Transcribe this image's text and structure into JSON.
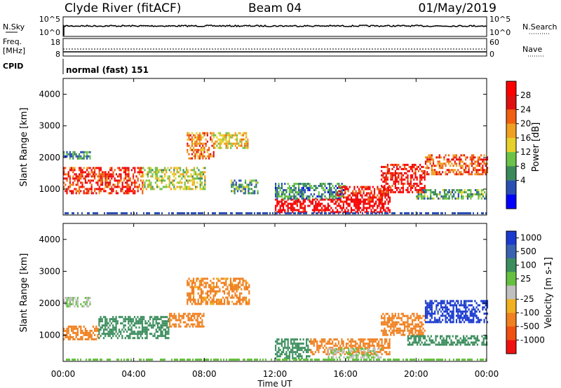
{
  "header": {
    "station": "Clyde River (fitACF)",
    "beam": "Beam 04",
    "date": "01/May/2019"
  },
  "top_panels": {
    "nsky": {
      "label": "N.Sky",
      "tick_hi": "10^5",
      "tick_lo": "10^0"
    },
    "nsearch": {
      "label": "N.Search",
      "tick_hi": "10^5",
      "tick_lo": "10^0"
    },
    "freq": {
      "label_a": "Freq.",
      "label_b": "[MHz]",
      "tick_hi": "18",
      "tick_lo": "8"
    },
    "nave": {
      "label": "Nave",
      "tick_hi": "60",
      "tick_lo": "0"
    },
    "cpid": {
      "label": "CPID",
      "value": "normal (fast) 151"
    }
  },
  "colors": {
    "power_scale": [
      "#0000ff",
      "#2b4fb5",
      "#3b8a5a",
      "#6cc34a",
      "#e6d02a",
      "#f0a020",
      "#f06010",
      "#e01010",
      "#ff0000"
    ],
    "velocity_scale": [
      "#1a3ad0",
      "#3a62b0",
      "#3c8e5e",
      "#66c040",
      "#c0c0c0",
      "#f0b020",
      "#f08020",
      "#f05010",
      "#f01010"
    ]
  },
  "chart_data": [
    {
      "type": "heatmap",
      "name": "power",
      "ylabel": "Slant Range [km]",
      "xlabel": "",
      "colorbar_label": "Power [dB]",
      "colorbar_ticks": [
        "28",
        "24",
        "20",
        "16",
        "12",
        "8",
        "4"
      ],
      "x_ticks": [
        "00:00",
        "04:00",
        "08:00",
        "12:00",
        "16:00",
        "20:00",
        "00:00"
      ],
      "y_ticks": [
        "1000",
        "2000",
        "3000",
        "4000"
      ],
      "xlim": [
        0,
        24
      ],
      "ylim": [
        180,
        4500
      ],
      "regions": [
        {
          "t0": 0.0,
          "t1": 4.5,
          "r0": 900,
          "r1": 1700,
          "v": 24
        },
        {
          "t0": 4.5,
          "t1": 8.0,
          "r0": 1000,
          "r1": 1700,
          "v": 14
        },
        {
          "t0": 7.0,
          "t1": 8.5,
          "r0": 2000,
          "r1": 2800,
          "v": 20
        },
        {
          "t0": 8.5,
          "t1": 10.5,
          "r0": 2300,
          "r1": 2800,
          "v": 16
        },
        {
          "t0": 0.0,
          "t1": 1.5,
          "r0": 2000,
          "r1": 2200,
          "v": 8
        },
        {
          "t0": 9.5,
          "t1": 11.0,
          "r0": 900,
          "r1": 1300,
          "v": 10
        },
        {
          "t0": 12.0,
          "t1": 18.5,
          "r0": 300,
          "r1": 700,
          "v": 28
        },
        {
          "t0": 12.0,
          "t1": 16.0,
          "r0": 700,
          "r1": 1200,
          "v": 8
        },
        {
          "t0": 15.5,
          "t1": 18.5,
          "r0": 600,
          "r1": 1100,
          "v": 26
        },
        {
          "t0": 18.0,
          "t1": 20.5,
          "r0": 900,
          "r1": 1800,
          "v": 26
        },
        {
          "t0": 20.5,
          "t1": 24.0,
          "r0": 1500,
          "r1": 2100,
          "v": 22
        },
        {
          "t0": 20.0,
          "t1": 24.0,
          "r0": 700,
          "r1": 1000,
          "v": 10
        }
      ]
    },
    {
      "type": "heatmap",
      "name": "velocity",
      "ylabel": "Slant Range [km]",
      "xlabel": "Time UT",
      "colorbar_label": "Velocity [m s-1]",
      "colorbar_ticks": [
        "1000",
        "500",
        "100",
        "25",
        "-25",
        "-100",
        "-500",
        "-1000"
      ],
      "x_ticks": [
        "00:00",
        "04:00",
        "08:00",
        "12:00",
        "16:00",
        "20:00",
        "00:00"
      ],
      "y_ticks": [
        "1000",
        "2000",
        "3000",
        "4000"
      ],
      "xlim": [
        0,
        24
      ],
      "ylim": [
        180,
        4500
      ],
      "regions": [
        {
          "t0": 0.0,
          "t1": 1.5,
          "r0": 1900,
          "r1": 2200,
          "v": 0
        },
        {
          "t0": 0.0,
          "t1": 2.0,
          "r0": 900,
          "r1": 1300,
          "v": -200
        },
        {
          "t0": 2.0,
          "t1": 6.0,
          "r0": 900,
          "r1": 1600,
          "v": 60
        },
        {
          "t0": 6.0,
          "t1": 8.0,
          "r0": 1300,
          "r1": 1700,
          "v": -200
        },
        {
          "t0": 7.0,
          "t1": 10.5,
          "r0": 2000,
          "r1": 2800,
          "v": -150
        },
        {
          "t0": 12.0,
          "t1": 14.0,
          "r0": 300,
          "r1": 900,
          "v": 60
        },
        {
          "t0": 14.0,
          "t1": 18.5,
          "r0": 400,
          "r1": 900,
          "v": -300
        },
        {
          "t0": 15.0,
          "t1": 18.0,
          "r0": 300,
          "r1": 600,
          "v": 0
        },
        {
          "t0": 18.0,
          "t1": 20.5,
          "r0": 1000,
          "r1": 1700,
          "v": -300
        },
        {
          "t0": 20.5,
          "t1": 24.0,
          "r0": 1400,
          "r1": 2100,
          "v": 800
        },
        {
          "t0": 19.5,
          "t1": 24.0,
          "r0": 700,
          "r1": 1000,
          "v": 60
        }
      ]
    }
  ]
}
